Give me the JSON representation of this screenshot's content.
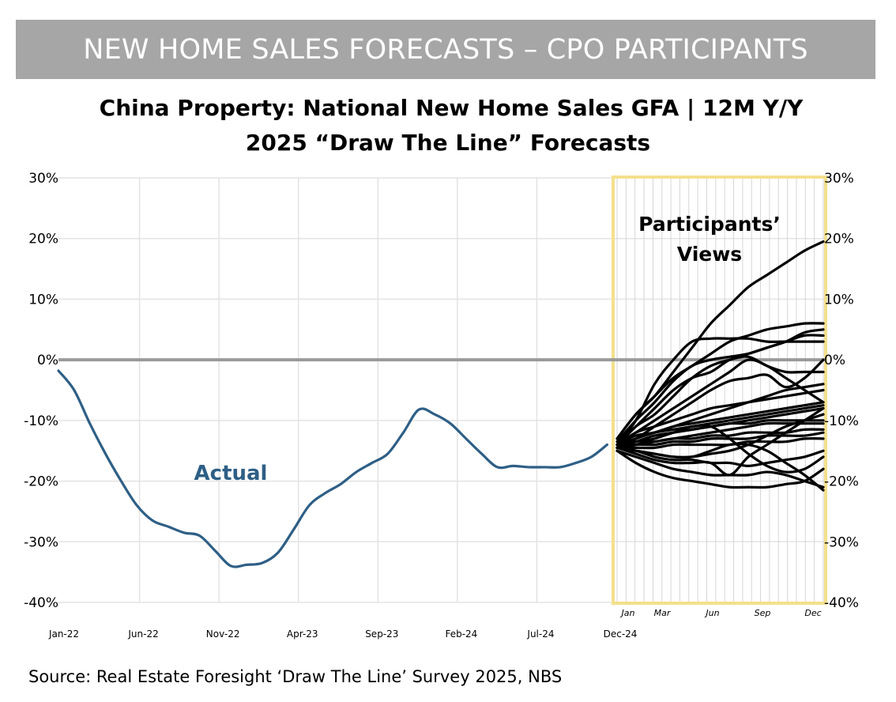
{
  "banner": "NEW HOME SALES FORECASTS – CPO PARTICIPANTS",
  "title_line1": "China Property: National New Home Sales GFA | 12M Y/Y",
  "title_line2": "2025 “Draw The Line” Forecasts",
  "source": "Source: Real Estate Foresight ‘Draw The Line’ Survey 2025, NBS",
  "colors": {
    "banner_bg": "#a6a6a6",
    "actual": "#2e5f86",
    "forecast": "#000000",
    "zero_line": "#9a9a9a",
    "highlight_border": "#f4e08c",
    "grid": "#e3e3e3"
  },
  "chart_data": {
    "type": "line",
    "ylim": [
      -40,
      30
    ],
    "y_ticks": [
      "30%",
      "20%",
      "10%",
      "0%",
      "-10%",
      "-20%",
      "-30%",
      "-40%"
    ],
    "x_tick_labels": [
      "Jan-22",
      "Jun-22",
      "Nov-22",
      "Apr-23",
      "Sep-23",
      "Feb-24",
      "Jul-24",
      "Dec-24"
    ],
    "forecast_x_tick_labels": [
      "Jan",
      "Mar",
      "Jun",
      "Sep",
      "Dec"
    ],
    "annotations": {
      "actual": "Actual",
      "participants_line1": "Participants’",
      "participants_line2": "Views"
    },
    "actual": {
      "name": "Actual",
      "x": [
        "Jan-22",
        "Feb-22",
        "Mar-22",
        "Apr-22",
        "May-22",
        "Jun-22",
        "Jul-22",
        "Aug-22",
        "Sep-22",
        "Oct-22",
        "Nov-22",
        "Dec-22",
        "Jan-23",
        "Feb-23",
        "Mar-23",
        "Apr-23",
        "May-23",
        "Jun-23",
        "Jul-23",
        "Aug-23",
        "Sep-23",
        "Oct-23",
        "Nov-23",
        "Dec-23",
        "Jan-24",
        "Feb-24",
        "Mar-24",
        "Apr-24",
        "May-24",
        "Jun-24",
        "Jul-24",
        "Aug-24",
        "Sep-24",
        "Oct-24",
        "Nov-24",
        "Dec-24"
      ],
      "values": [
        -1.8,
        -5,
        -10.5,
        -15.5,
        -20,
        -24,
        -26.5,
        -27.5,
        -28.5,
        -29,
        -31.5,
        -34,
        -33.8,
        -33.5,
        -31.8,
        -28,
        -24,
        -22,
        -20.5,
        -18.5,
        -17,
        -15.5,
        -12,
        -8.2,
        -9,
        -10.5,
        -13,
        -15.5,
        -17.7,
        -17.5,
        -17.7,
        -17.7,
        -17.7,
        -17,
        -16,
        -14
      ],
      "notes": ""
    },
    "forecast_months": [
      "Jan-25",
      "Feb-25",
      "Mar-25",
      "Apr-25",
      "May-25",
      "Jun-25",
      "Jul-25",
      "Aug-25",
      "Sep-25",
      "Oct-25",
      "Nov-25",
      "Dec-25"
    ],
    "forecasts": [
      [
        -13,
        -9,
        -6,
        -2,
        2,
        6,
        9,
        12,
        14,
        16,
        18,
        19.5
      ],
      [
        -13,
        -9,
        -6,
        -3,
        -1,
        1,
        3,
        4,
        5,
        5.5,
        6,
        6
      ],
      [
        -13.5,
        -10,
        -7,
        -3.5,
        -1,
        0,
        0.5,
        1,
        2,
        3,
        4.5,
        5
      ],
      [
        -14,
        -10,
        -4,
        0,
        3,
        3.5,
        3.5,
        3.5,
        3,
        3,
        3,
        3
      ],
      [
        -14,
        -11,
        -8,
        -5,
        -3,
        -2,
        0,
        1,
        2,
        3,
        4,
        4
      ],
      [
        -14,
        -11,
        -9,
        -6,
        -3,
        -1,
        0,
        0.5,
        -1,
        -2,
        -2,
        -2
      ],
      [
        -14,
        -12,
        -10,
        -8,
        -6,
        -4,
        -2,
        0,
        -1,
        -3,
        -5,
        -7
      ],
      [
        -14,
        -12,
        -11,
        -10,
        -9,
        -8,
        -7.5,
        -7,
        -6.5,
        -6,
        -5.5,
        -5
      ],
      [
        -14,
        -12.5,
        -12,
        -11,
        -10.5,
        -10,
        -9.5,
        -9,
        -8.5,
        -8,
        -7.5,
        -7
      ],
      [
        -14,
        -13,
        -12,
        -11.5,
        -11,
        -10.5,
        -10,
        -9.5,
        -9,
        -8.5,
        -8,
        -7.5
      ],
      [
        -14.5,
        -13.5,
        -12.5,
        -12,
        -11.5,
        -11,
        -10.5,
        -10,
        -9.5,
        -9,
        -8.5,
        -8
      ],
      [
        -14.5,
        -13,
        -12,
        -11,
        -10,
        -9,
        -8,
        -7,
        -6,
        -5,
        -4.5,
        -4
      ],
      [
        -14.5,
        -13.5,
        -13,
        -12,
        -11.5,
        -11,
        -10.5,
        -10.5,
        -10,
        -10,
        -10,
        -10
      ],
      [
        -14.5,
        -14,
        -13.5,
        -13,
        -12.5,
        -12,
        -11.5,
        -11,
        -10.5,
        -10.5,
        -10.5,
        -10.5
      ],
      [
        -14.5,
        -14,
        -13.5,
        -13,
        -13,
        -12.5,
        -12.5,
        -12,
        -12,
        -12,
        -11.5,
        -11.5
      ],
      [
        -14.5,
        -14,
        -14,
        -13.5,
        -13.5,
        -13,
        -13,
        -13,
        -12.5,
        -12.5,
        -12.5,
        -12
      ],
      [
        -14.5,
        -14.5,
        -14.5,
        -14,
        -14,
        -14,
        -14,
        -13.5,
        -13.5,
        -13.5,
        -13,
        -13
      ],
      [
        -14.5,
        -15,
        -15.5,
        -16,
        -16,
        -15.5,
        -15,
        -14,
        -12.5,
        -11,
        -10,
        -9
      ],
      [
        -14.5,
        -15,
        -16,
        -16.5,
        -16.5,
        -17,
        -17,
        -17.5,
        -17,
        -16.5,
        -16,
        -15
      ],
      [
        -14.5,
        -15.5,
        -16.5,
        -17,
        -17,
        -17,
        -19,
        -16,
        -14,
        -12,
        -10,
        -8
      ],
      [
        -15,
        -16,
        -17,
        -18,
        -18.5,
        -19,
        -19,
        -19,
        -18.5,
        -19,
        -20,
        -21
      ],
      [
        -15,
        -17,
        -18.5,
        -19.5,
        -20,
        -20.5,
        -21,
        -21,
        -21,
        -20.5,
        -20,
        -18
      ],
      [
        -14.5,
        -14,
        -13,
        -12,
        -11,
        -11,
        -13,
        -15.5,
        -17.5,
        -18.5,
        -18,
        -16
      ],
      [
        -14.5,
        -15,
        -15.5,
        -16,
        -16,
        -15,
        -14,
        -14,
        -15,
        -17,
        -19,
        -21.5
      ],
      [
        -14.5,
        -13,
        -11,
        -9,
        -7,
        -5,
        -3.5,
        -3,
        -2.5,
        -4.5,
        -3,
        0
      ]
    ]
  }
}
